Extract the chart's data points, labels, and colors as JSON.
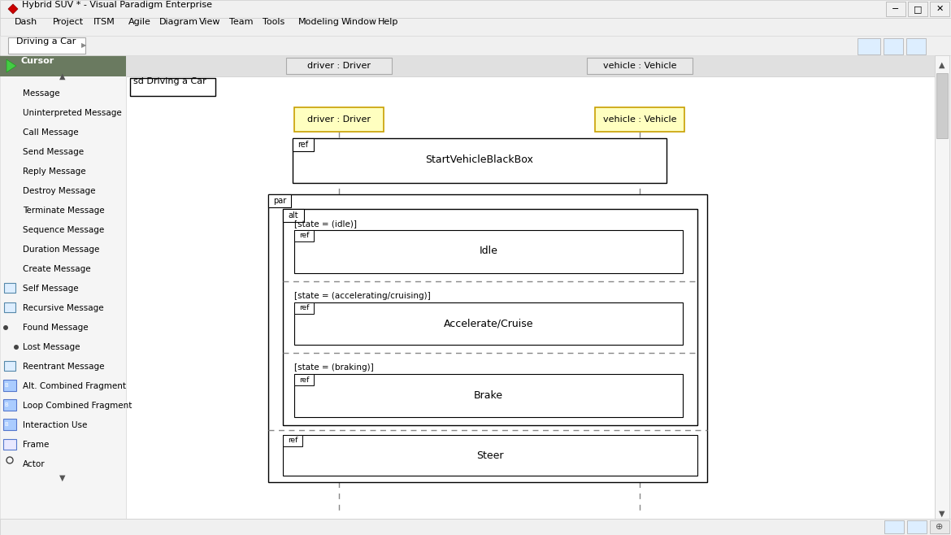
{
  "title": "Hybrid SUV * - Visual Paradigm Enterprise",
  "tab_title": "Driving a Car",
  "frame_label": "sd Driving a Car",
  "window_bg": "#f0f0f0",
  "titlebar_bg": "#f0f0f0",
  "menubar_bg": "#f0f0f0",
  "tabbar_bg": "#f0f0ee",
  "canvas_bg": "#ffffff",
  "sidebar_bg": "#f5f5f5",
  "header_bar_bg": "#e0e0e0",
  "lifeline_box_color": "#ffffc0",
  "lifeline_box_border": "#c8a000",
  "statusbar_bg": "#f0f0f0",
  "scrollbar_bg": "#f5f5f5",
  "ref_border": "#000000",
  "ref_bg": "#ffffff",
  "dashed_color": "#888888",
  "menu_items": [
    "Dash",
    "Project",
    "ITSM",
    "Agile",
    "Diagram",
    "View",
    "Team",
    "Tools",
    "Modeling",
    "Window",
    "Help"
  ],
  "sidebar_items": [
    {
      "label": "Message",
      "icon_type": "arrow_right"
    },
    {
      "label": "Uninterpreted Message",
      "icon_type": "arrow_right"
    },
    {
      "label": "Call Message",
      "icon_type": "call"
    },
    {
      "label": "Send Message",
      "icon_type": "arrow_right"
    },
    {
      "label": "Reply Message",
      "icon_type": "reply"
    },
    {
      "label": "Destroy Message",
      "icon_type": "arrow_right"
    },
    {
      "label": "Terminate Message",
      "icon_type": "arrow_right"
    },
    {
      "label": "Sequence Message",
      "icon_type": "arrow_right"
    },
    {
      "label": "Duration Message",
      "icon_type": "diag"
    },
    {
      "label": "Create Message",
      "icon_type": "create"
    },
    {
      "label": "Self Message",
      "icon_type": "box_icon"
    },
    {
      "label": "Recursive Message",
      "icon_type": "box_icon"
    },
    {
      "label": "Found Message",
      "icon_type": "found"
    },
    {
      "label": "Lost Message",
      "icon_type": "lost"
    },
    {
      "label": "Reentrant Message",
      "icon_type": "box_icon"
    },
    {
      "label": "Alt. Combined Fragment",
      "icon_type": "blue_box"
    },
    {
      "label": "Loop Combined Fragment",
      "icon_type": "blue_box"
    },
    {
      "label": "Interaction Use",
      "icon_type": "blue_box"
    },
    {
      "label": "Frame",
      "icon_type": "frame_icon"
    },
    {
      "label": "Actor",
      "icon_type": "actor"
    }
  ]
}
